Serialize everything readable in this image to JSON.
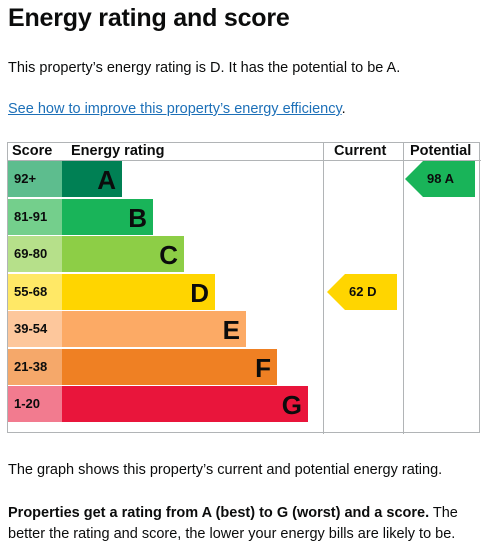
{
  "heading": "Energy rating and score",
  "intro": "This property’s energy rating is D. It has the potential to be A.",
  "improve_link": "See how to improve this property’s energy efficiency",
  "improve_link_suffix": ".",
  "chart_data": {
    "type": "table",
    "headers": {
      "score": "Score",
      "rating": "Energy rating",
      "current": "Current",
      "potential": "Potential"
    },
    "bands": [
      {
        "score": "92+",
        "letter": "A",
        "color": "#008054",
        "score_color": "#5dbd8e",
        "text_color": "#0b0c0c"
      },
      {
        "score": "81-91",
        "letter": "B",
        "color": "#19b459",
        "score_color": "#74cf8c",
        "text_color": "#0b0c0c"
      },
      {
        "score": "69-80",
        "letter": "C",
        "color": "#8dce46",
        "score_color": "#b6e08a",
        "text_color": "#0b0c0c"
      },
      {
        "score": "55-68",
        "letter": "D",
        "color": "#ffd500",
        "score_color": "#ffe866",
        "text_color": "#0b0c0c"
      },
      {
        "score": "39-54",
        "letter": "E",
        "color": "#fcaa65",
        "score_color": "#fdc79c",
        "text_color": "#0b0c0c"
      },
      {
        "score": "21-38",
        "letter": "F",
        "color": "#ef8023",
        "score_color": "#f5a86a",
        "text_color": "#0b0c0c"
      },
      {
        "score": "1-20",
        "letter": "G",
        "color": "#e9153b",
        "score_color": "#f27b8f",
        "text_color": "#0b0c0c"
      }
    ],
    "current": {
      "score": 62,
      "rating": "D",
      "label": "62  D",
      "color": "#ffd500"
    },
    "potential": {
      "score": 98,
      "rating": "A",
      "label": "98  A",
      "color": "#19b459"
    }
  },
  "graph_caption": "The graph shows this property’s current and potential energy rating.",
  "rating_bold": "Properties get a rating from A (best) to G (worst) and a score.",
  "rating_rest": " The better the rating and score, the lower your energy bills are likely to be."
}
